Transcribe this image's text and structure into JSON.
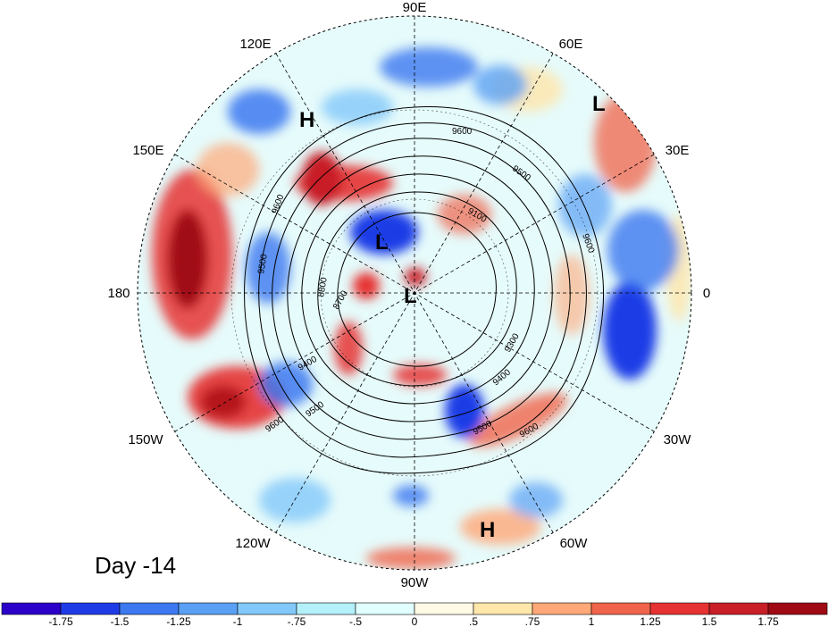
{
  "panel_label": "Day -14",
  "longitude_labels": [
    "90E",
    "60E",
    "30E",
    "0",
    "30W",
    "60W",
    "90W",
    "120W",
    "150W",
    "180",
    "150E",
    "120E"
  ],
  "contour_levels": [
    "8700",
    "8800",
    "9100",
    "9300",
    "9400",
    "9500",
    "9600"
  ],
  "pressure_centers": [
    {
      "type": "H",
      "where": "East Asia coast"
    },
    {
      "type": "L",
      "where": "Caspian / Middle East"
    },
    {
      "type": "L",
      "where": "Arctic near Siberia"
    },
    {
      "type": "L",
      "where": "North Pole"
    },
    {
      "type": "H",
      "where": "northern South America"
    }
  ],
  "colorbar": {
    "ticks": [
      "-1.75",
      "-1.5",
      "-1.25",
      "-1",
      "-.75",
      "-.5",
      "0",
      ".5",
      ".75",
      "1",
      "1.25",
      "1.5",
      "1.75"
    ],
    "colors": [
      "#2b00c8",
      "#1e3ce6",
      "#3c78f0",
      "#5aa0f5",
      "#82c8fa",
      "#b4f0fa",
      "#e1ffff",
      "#fffae6",
      "#ffe6aa",
      "#ffa878",
      "#f0644b",
      "#e63232",
      "#c81e28",
      "#a00a14"
    ]
  },
  "colors": {
    "negative": "#3c78f0",
    "positive": "#e63232",
    "contour": "#000000"
  }
}
